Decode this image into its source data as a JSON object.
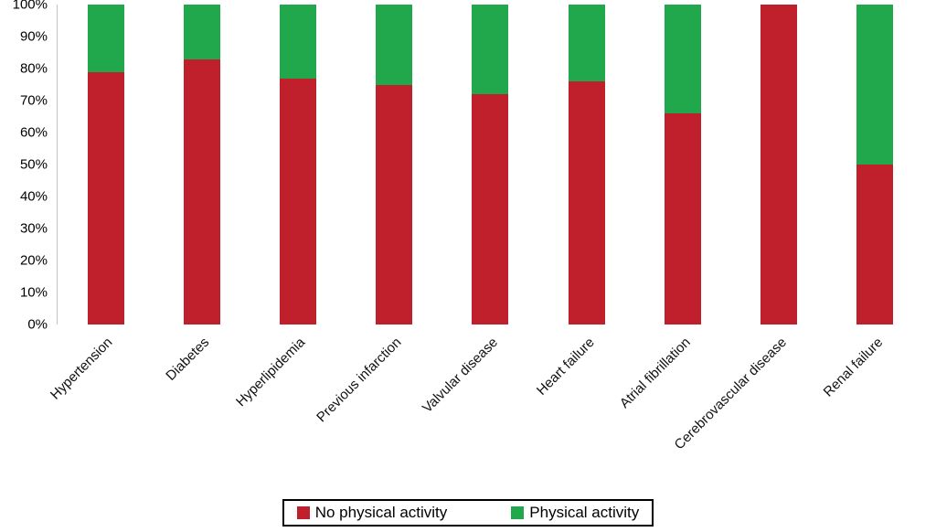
{
  "chart_data": {
    "type": "bar",
    "stacked": true,
    "percent": true,
    "title": "",
    "xlabel": "",
    "ylabel": "",
    "ylim": [
      0,
      100
    ],
    "yticks": [
      "100%",
      "90%",
      "80%",
      "70%",
      "60%",
      "50%",
      "40%",
      "30%",
      "20%",
      "10%",
      "0%"
    ],
    "grid": false,
    "legend_position": "bottom",
    "categories": [
      "Hypertension",
      "Diabetes",
      "Hyperlipidemia",
      "Previous infarction",
      "Valvular disease",
      "Heart failure",
      "Atrial fibrillation",
      "Cerebrovascular disease",
      "Renal failure"
    ],
    "series": [
      {
        "name": "No physical activity",
        "color": "#c0202c",
        "values": [
          79,
          83,
          77,
          75,
          72,
          76,
          66,
          100,
          50
        ]
      },
      {
        "name": "Physical activity",
        "color": "#21a84c",
        "values": [
          21,
          17,
          23,
          25,
          28,
          24,
          34,
          0,
          50
        ]
      }
    ]
  }
}
